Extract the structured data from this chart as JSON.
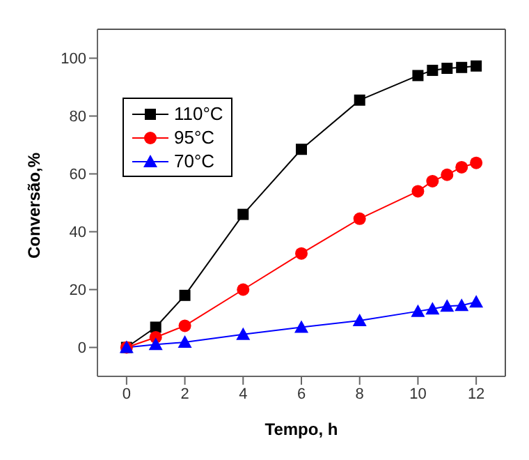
{
  "chart_data": {
    "type": "line",
    "xlabel": "Tempo, h",
    "ylabel": "Conversão,%",
    "x": [
      0,
      1,
      2,
      4,
      6,
      8,
      10,
      10.5,
      11,
      11.5,
      12
    ],
    "series": [
      {
        "name": "110°C",
        "color": "#000000",
        "marker": "square",
        "values": [
          0,
          7,
          18,
          46,
          68.5,
          85.5,
          94,
          95.8,
          96.5,
          96.8,
          97.3
        ]
      },
      {
        "name": "95°C",
        "color": "#ff0000",
        "marker": "circle",
        "values": [
          0,
          3.5,
          7.5,
          20,
          32.5,
          44.5,
          54,
          57.5,
          59.7,
          62.3,
          63.8
        ]
      },
      {
        "name": "70°C",
        "color": "#0000ff",
        "marker": "triangle",
        "values": [
          0,
          1,
          1.8,
          4.5,
          7,
          9.3,
          12.5,
          13.3,
          14.3,
          14.5,
          15.7
        ]
      }
    ],
    "xlim": [
      -1,
      13
    ],
    "xticks": [
      0,
      2,
      4,
      6,
      8,
      10,
      12
    ],
    "ylim": [
      -10,
      110
    ],
    "yticks": [
      0,
      20,
      40,
      60,
      80,
      100
    ],
    "grid": false,
    "legend": "top left",
    "line_style": "solid"
  }
}
